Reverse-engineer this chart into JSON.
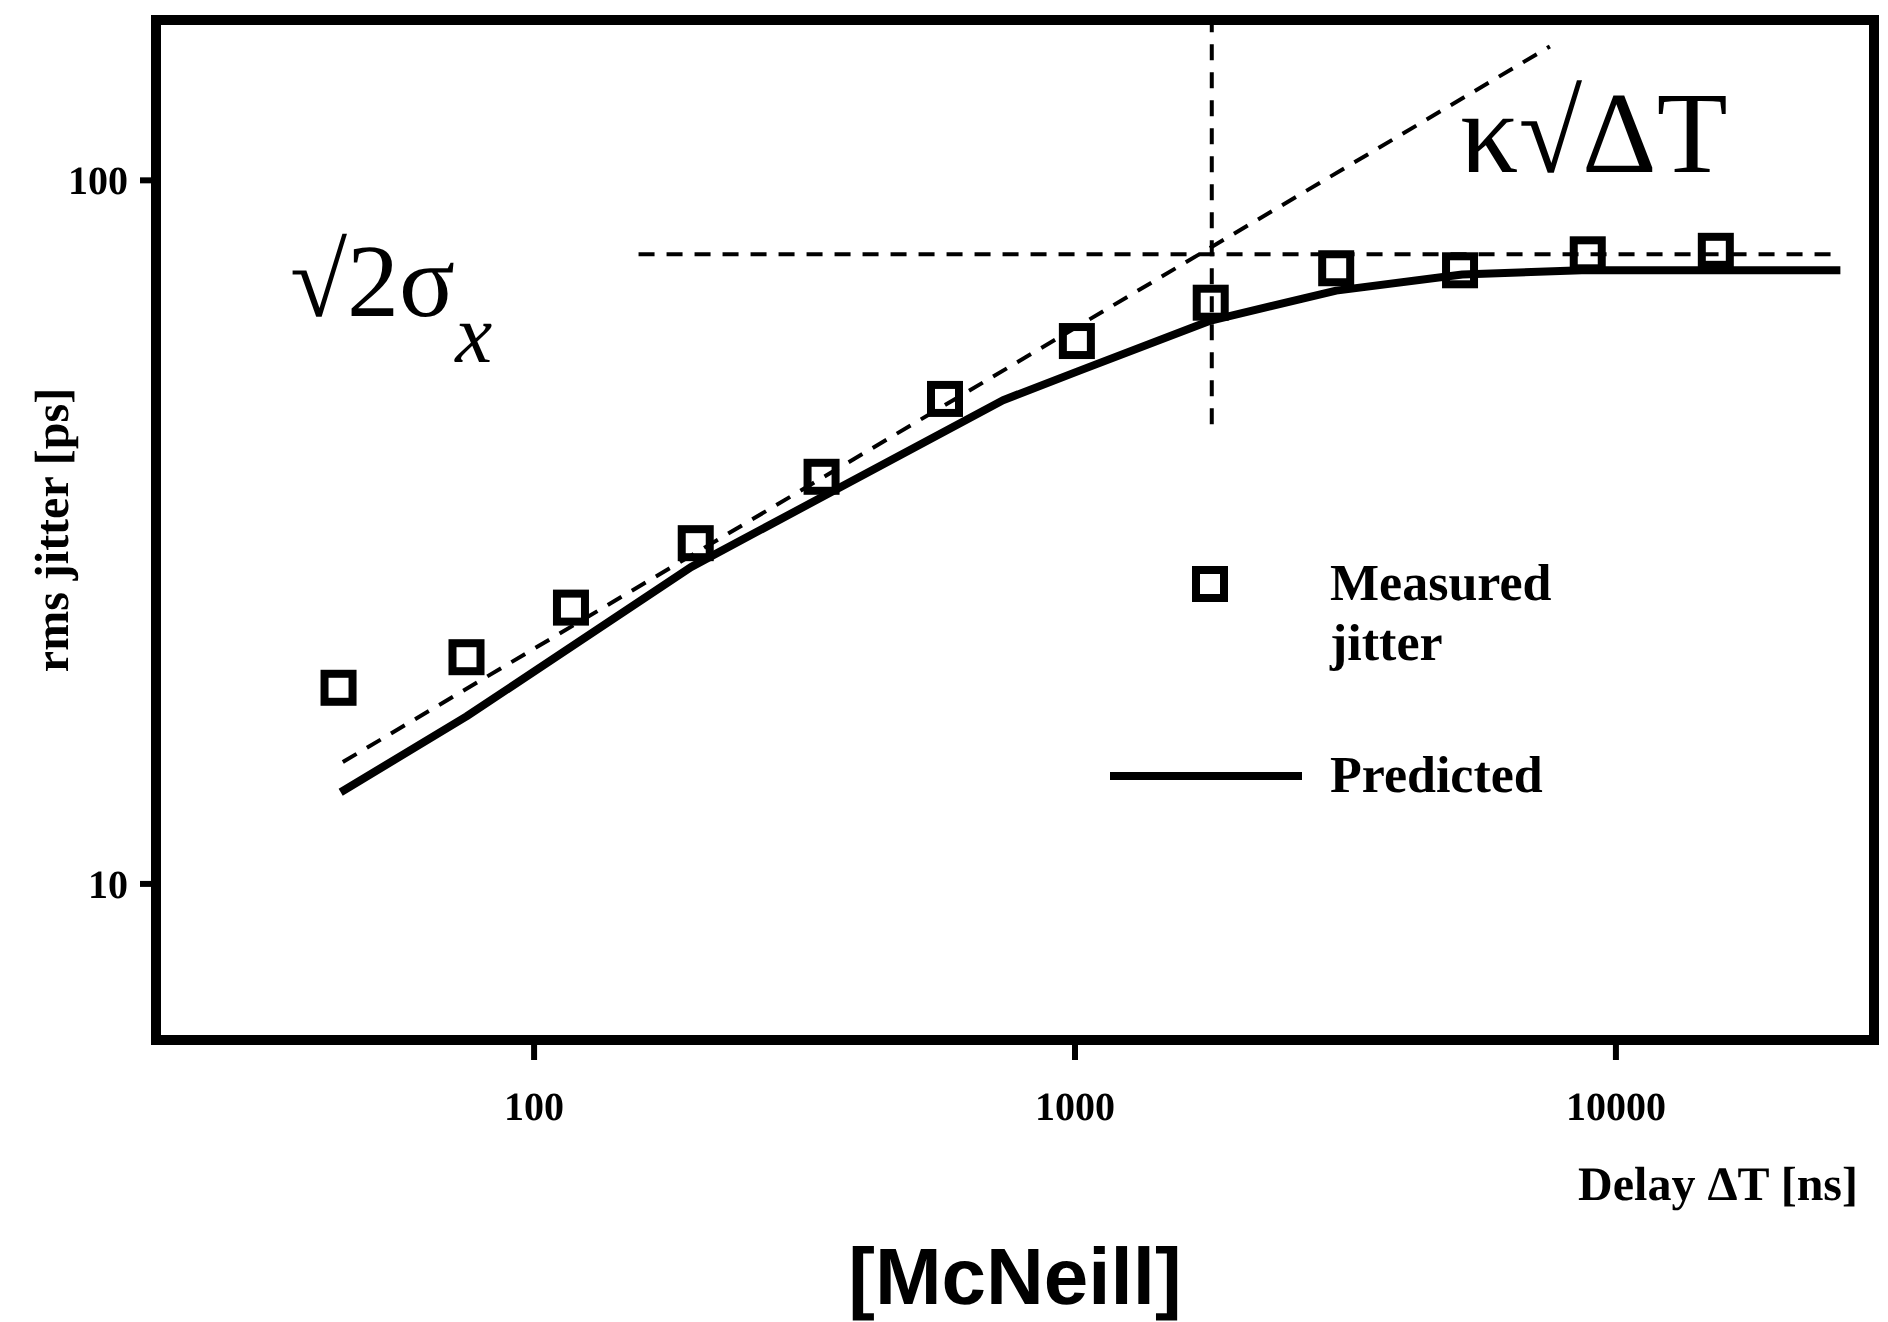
{
  "chart_data": {
    "type": "scatter",
    "xlabel": "Delay ΔT [ns]",
    "ylabel": "rms jitter [ps]",
    "log": "xy",
    "xlim": [
      20,
      30000
    ],
    "ylim": [
      6,
      169
    ],
    "xticks": [
      100,
      1000,
      10000
    ],
    "yticks": [
      10,
      100
    ],
    "grid": false,
    "legend": "right",
    "series": [
      {
        "name": "Measured jitter",
        "marker": "square",
        "color": "#000000",
        "x": [
          43.5,
          75,
          117,
          199,
          340,
          575,
          1008,
          1782,
          3040,
          5150,
          8870,
          15300
        ],
        "values": [
          19,
          21,
          24.7,
          30.5,
          37.9,
          48.9,
          59.1,
          67,
          75,
          74.5,
          78.5,
          79.4
        ]
      },
      {
        "name": "Predicted",
        "type": "line",
        "line_style": "solid",
        "color": "#000000",
        "x": [
          43.9,
          75,
          195,
          736,
          1017,
          1782,
          3040,
          5200,
          8650,
          26000
        ],
        "values": [
          13.5,
          17.3,
          28.2,
          48.7,
          53.6,
          63.2,
          69.7,
          73.5,
          74.5,
          74.5
        ]
      },
      {
        "type": "line",
        "line_style": "dashed",
        "color": "#000000",
        "x": [
          44.3,
          7550
        ],
        "values": [
          14.9,
          155
        ]
      },
      {
        "type": "line",
        "line_style": "dashed",
        "color": "#000000",
        "x": [
          156,
          25000
        ],
        "values": [
          78.5,
          78.5
        ]
      },
      {
        "type": "line",
        "line_style": "dashed",
        "color": "#000000",
        "x": [
          1790,
          1790
        ],
        "values": [
          45,
          169
        ]
      }
    ],
    "annotations": [
      "√2σ$_{x}$",
      "κ√ΔT",
      "[McNeill]"
    ]
  }
}
